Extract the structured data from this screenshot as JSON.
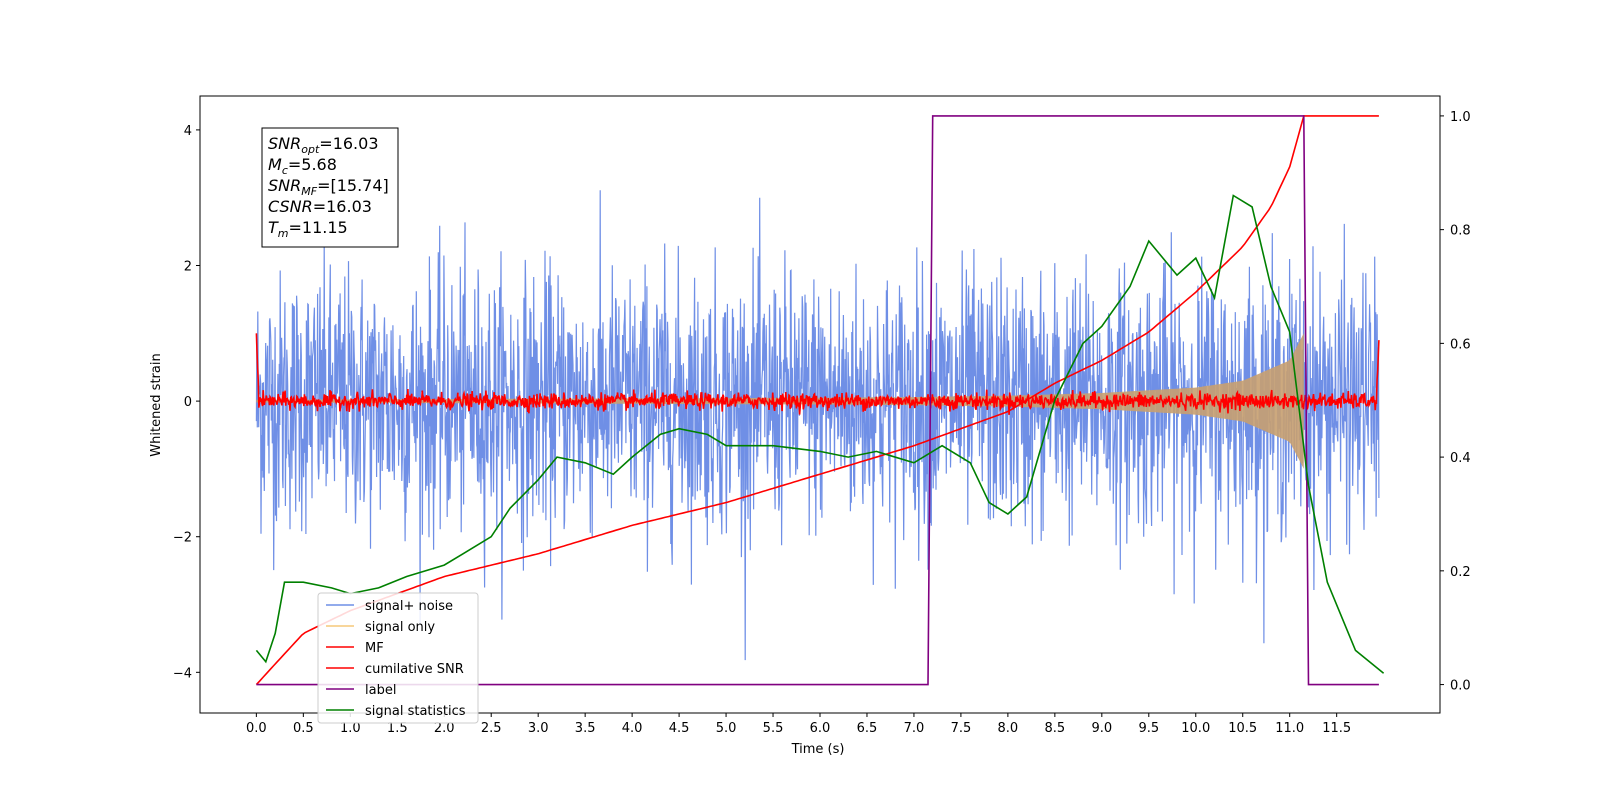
{
  "chart_data": {
    "type": "line",
    "xlabel": "Time (s)",
    "ylabel_left": "Whitened strain",
    "ylabel_right": "",
    "x_range": [
      -0.6,
      12.6
    ],
    "y_left_range": [
      -4.6,
      4.5
    ],
    "y_right_range": [
      -0.05,
      1.035
    ],
    "x_ticks": [
      "0.0",
      "0.5",
      "1.0",
      "1.5",
      "2.0",
      "2.5",
      "3.0",
      "3.5",
      "4.0",
      "4.5",
      "5.0",
      "5.5",
      "6.0",
      "6.5",
      "7.0",
      "7.5",
      "8.0",
      "8.5",
      "9.0",
      "9.5",
      "10.0",
      "10.5",
      "11.0",
      "11.5"
    ],
    "y_left_ticks": [
      "−4",
      "−2",
      "0",
      "2",
      "4"
    ],
    "y_right_ticks": [
      "0.0",
      "0.2",
      "0.4",
      "0.6",
      "0.8",
      "1.0"
    ],
    "grid": false,
    "legend_position": "lower-left",
    "annotation": {
      "lines": [
        {
          "sym": "SNR",
          "sub": "opt",
          "value": "=16.03"
        },
        {
          "sym": "M",
          "sub": "c",
          "value": "=5.68"
        },
        {
          "sym": "SNR",
          "sub": "MF",
          "value": "=[15.74]"
        },
        {
          "sym": "CSNR",
          "sub": "",
          "value": "=16.03"
        },
        {
          "sym": "T",
          "sub": "m",
          "value": "=11.15"
        }
      ]
    },
    "series": [
      {
        "name": "signal+ noise",
        "color": "#6f8fe6",
        "axis": "left",
        "description_values": {
          "noise_std": 0.95,
          "peak_abs": 4.05
        }
      },
      {
        "name": "signal only",
        "color": "#f5c87a",
        "axis": "left",
        "envelope": {
          "t": [
            0,
            2,
            4,
            6,
            7,
            8,
            9,
            10,
            10.5,
            11.0,
            11.15
          ],
          "amp": [
            0.02,
            0.03,
            0.04,
            0.05,
            0.06,
            0.08,
            0.12,
            0.2,
            0.3,
            0.6,
            1.0
          ]
        }
      },
      {
        "name": "MF",
        "color": "#ff0000",
        "axis": "left",
        "description_values": {
          "baseline": 0.0,
          "jitter": 0.06,
          "start_value": 1.0,
          "end_value": 0.9
        }
      },
      {
        "name": "cumilative SNR",
        "color": "#ff0000",
        "axis": "right",
        "x": [
          0.0,
          0.5,
          1.0,
          2.0,
          3.0,
          4.0,
          5.0,
          6.0,
          7.0,
          8.0,
          8.5,
          9.0,
          9.5,
          10.0,
          10.5,
          10.8,
          11.0,
          11.15
        ],
        "y": [
          0.0,
          0.09,
          0.13,
          0.19,
          0.23,
          0.28,
          0.32,
          0.37,
          0.42,
          0.48,
          0.53,
          0.57,
          0.62,
          0.69,
          0.77,
          0.84,
          0.91,
          1.0
        ]
      },
      {
        "name": "label",
        "color": "#800080",
        "axis": "right",
        "x": [
          0.0,
          7.15,
          7.2,
          11.15,
          11.2,
          11.95
        ],
        "y": [
          0.0,
          0.0,
          1.0,
          1.0,
          0.0,
          0.0
        ]
      },
      {
        "name": "signal statistics",
        "color": "#008000",
        "axis": "right",
        "x": [
          0.0,
          0.1,
          0.2,
          0.3,
          0.5,
          0.8,
          1.0,
          1.3,
          1.6,
          2.0,
          2.2,
          2.5,
          2.7,
          3.0,
          3.2,
          3.5,
          3.8,
          4.0,
          4.3,
          4.5,
          4.8,
          5.0,
          5.5,
          6.0,
          6.3,
          6.6,
          7.0,
          7.3,
          7.6,
          7.8,
          8.0,
          8.2,
          8.5,
          8.8,
          9.0,
          9.3,
          9.5,
          9.8,
          10.0,
          10.2,
          10.4,
          10.6,
          10.8,
          11.0,
          11.2,
          11.4,
          11.7,
          12.0
        ],
        "y": [
          0.06,
          0.04,
          0.09,
          0.18,
          0.18,
          0.17,
          0.16,
          0.17,
          0.19,
          0.21,
          0.23,
          0.26,
          0.31,
          0.36,
          0.4,
          0.39,
          0.37,
          0.4,
          0.44,
          0.45,
          0.44,
          0.42,
          0.42,
          0.41,
          0.4,
          0.41,
          0.39,
          0.42,
          0.39,
          0.32,
          0.3,
          0.33,
          0.5,
          0.6,
          0.63,
          0.7,
          0.78,
          0.72,
          0.75,
          0.68,
          0.86,
          0.84,
          0.7,
          0.62,
          0.35,
          0.18,
          0.06,
          0.02
        ]
      }
    ]
  }
}
